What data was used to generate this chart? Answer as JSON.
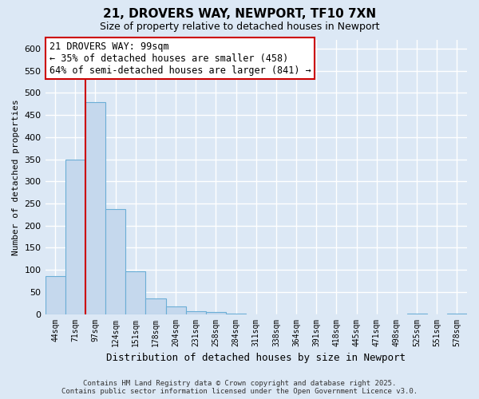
{
  "title": "21, DROVERS WAY, NEWPORT, TF10 7XN",
  "subtitle": "Size of property relative to detached houses in Newport",
  "xlabel": "Distribution of detached houses by size in Newport",
  "ylabel": "Number of detached properties",
  "bar_values": [
    85,
    350,
    480,
    238,
    97,
    35,
    18,
    7,
    5,
    1,
    0,
    0,
    0,
    0,
    0,
    0,
    0,
    0,
    1,
    0,
    1
  ],
  "bin_labels": [
    "44sqm",
    "71sqm",
    "97sqm",
    "124sqm",
    "151sqm",
    "178sqm",
    "204sqm",
    "231sqm",
    "258sqm",
    "284sqm",
    "311sqm",
    "338sqm",
    "364sqm",
    "391sqm",
    "418sqm",
    "445sqm",
    "471sqm",
    "498sqm",
    "525sqm",
    "551sqm",
    "578sqm"
  ],
  "bar_color": "#c5d8ed",
  "bar_edge_color": "#6baed6",
  "vline_color": "#cc0000",
  "vline_x_bar_index": 2,
  "ylim": [
    0,
    620
  ],
  "yticks": [
    0,
    50,
    100,
    150,
    200,
    250,
    300,
    350,
    400,
    450,
    500,
    550,
    600
  ],
  "annotation_title": "21 DROVERS WAY: 99sqm",
  "annotation_line1": "← 35% of detached houses are smaller (458)",
  "annotation_line2": "64% of semi-detached houses are larger (841) →",
  "annotation_box_color": "#ffffff",
  "annotation_box_edge": "#cc0000",
  "footer_line1": "Contains HM Land Registry data © Crown copyright and database right 2025.",
  "footer_line2": "Contains public sector information licensed under the Open Government Licence v3.0.",
  "bg_color": "#dce8f5",
  "plot_bg_color": "#dce8f5",
  "grid_color": "#ffffff"
}
